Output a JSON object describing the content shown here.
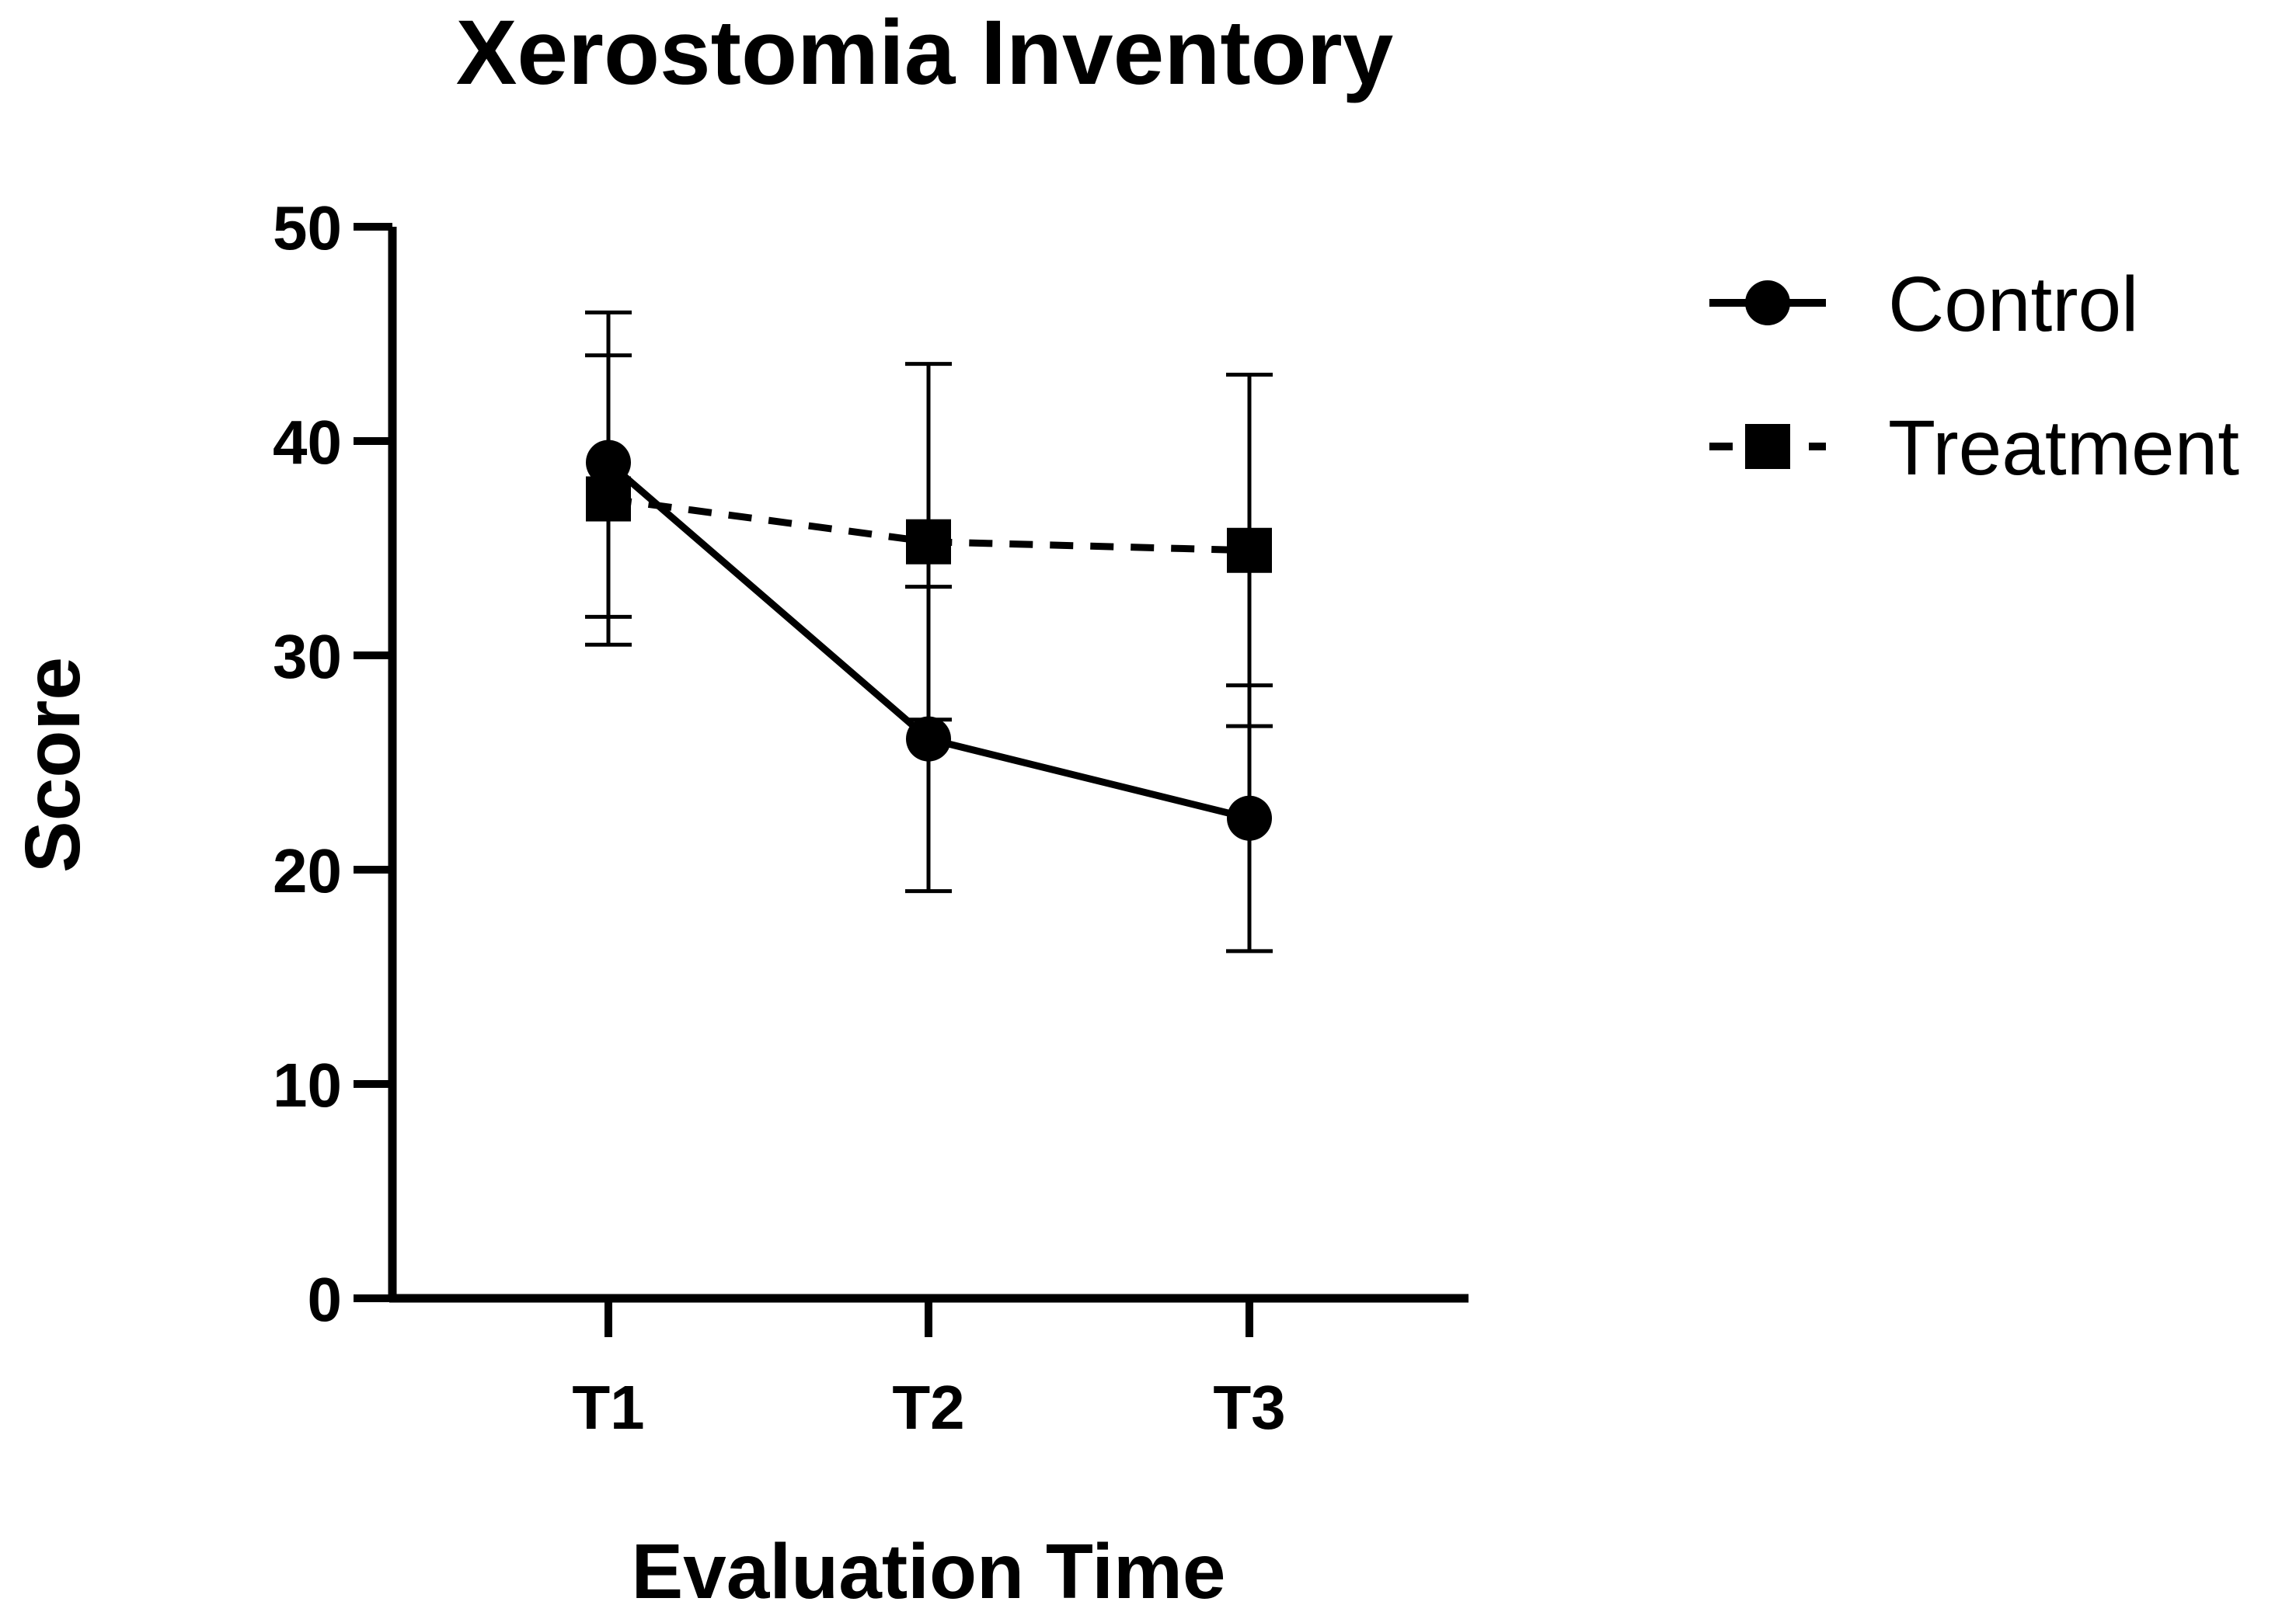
{
  "chart_data": {
    "type": "line",
    "title": "Xerostomia Inventory",
    "xlabel": "Evaluation Time",
    "ylabel": "Score",
    "categories": [
      "T1",
      "T2",
      "T3"
    ],
    "ylim": [
      0,
      50
    ],
    "yticks": [
      0,
      10,
      20,
      30,
      40,
      50
    ],
    "grid": false,
    "legend_position": "top-right",
    "series": [
      {
        "name": "Control",
        "marker": "circle",
        "line_style": "solid",
        "values": [
          39.0,
          26.1,
          22.4
        ],
        "error_low": [
          31.8,
          19.0,
          16.2
        ],
        "error_high": [
          46.0,
          33.2,
          28.6
        ],
        "color": "#000000"
      },
      {
        "name": "Treatment",
        "marker": "square",
        "line_style": "dashed",
        "values": [
          37.3,
          35.3,
          34.9
        ],
        "error_low": [
          30.5,
          27.0,
          26.7
        ],
        "error_high": [
          44.0,
          43.6,
          43.1
        ],
        "color": "#000000"
      }
    ]
  }
}
